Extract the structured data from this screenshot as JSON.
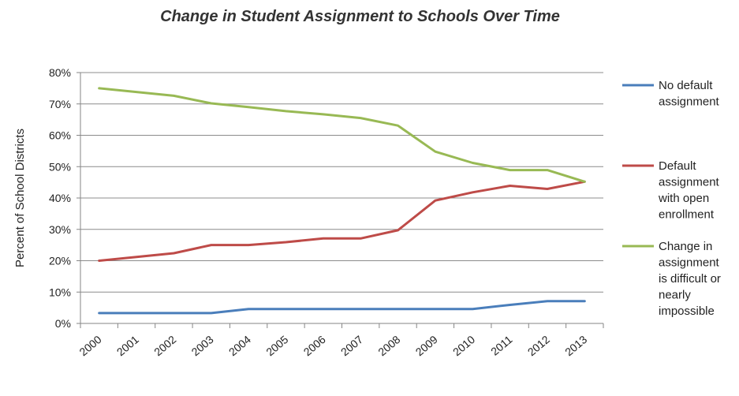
{
  "chart_data": {
    "type": "line",
    "title": "Change in Student Assignment to Schools Over Time",
    "ylabel": "Percent of School Districts",
    "xlabel": "",
    "x": [
      "2000",
      "2001",
      "2002",
      "2003",
      "2004",
      "2005",
      "2006",
      "2007",
      "2008",
      "2009",
      "2010",
      "2011",
      "2012",
      "2013"
    ],
    "ylim": [
      0,
      80
    ],
    "yticks": [
      0,
      10,
      20,
      30,
      40,
      50,
      60,
      70,
      80
    ],
    "ytick_labels": [
      "0%",
      "10%",
      "20%",
      "30%",
      "40%",
      "50%",
      "60%",
      "70%",
      "80%"
    ],
    "grid": true,
    "legend_position": "right",
    "series": [
      {
        "name": "No default assignment",
        "legend_lines": [
          "No default",
          "assignment"
        ],
        "color": "#4a7ebb",
        "values": [
          3.3,
          3.3,
          3.3,
          3.3,
          4.6,
          4.6,
          4.6,
          4.6,
          4.6,
          4.6,
          4.6,
          5.9,
          7.1,
          7.1
        ]
      },
      {
        "name": "Default assignment with open enrollment",
        "legend_lines": [
          "Default",
          "assignment",
          "with open",
          "enrollment"
        ],
        "color": "#be4b48",
        "values": [
          20.0,
          21.2,
          22.4,
          25.0,
          25.0,
          25.9,
          27.1,
          27.1,
          29.7,
          39.2,
          41.8,
          43.9,
          42.9,
          45.2
        ]
      },
      {
        "name": "Change in assignment is difficult or nearly impossible",
        "legend_lines": [
          "Change in",
          "assignment",
          "is difficult or",
          "nearly",
          "impossible"
        ],
        "color": "#98b954",
        "values": [
          75.0,
          73.8,
          72.6,
          70.2,
          69.0,
          67.7,
          66.7,
          65.5,
          63.1,
          54.8,
          51.2,
          48.9,
          48.9,
          45.2
        ]
      }
    ]
  }
}
